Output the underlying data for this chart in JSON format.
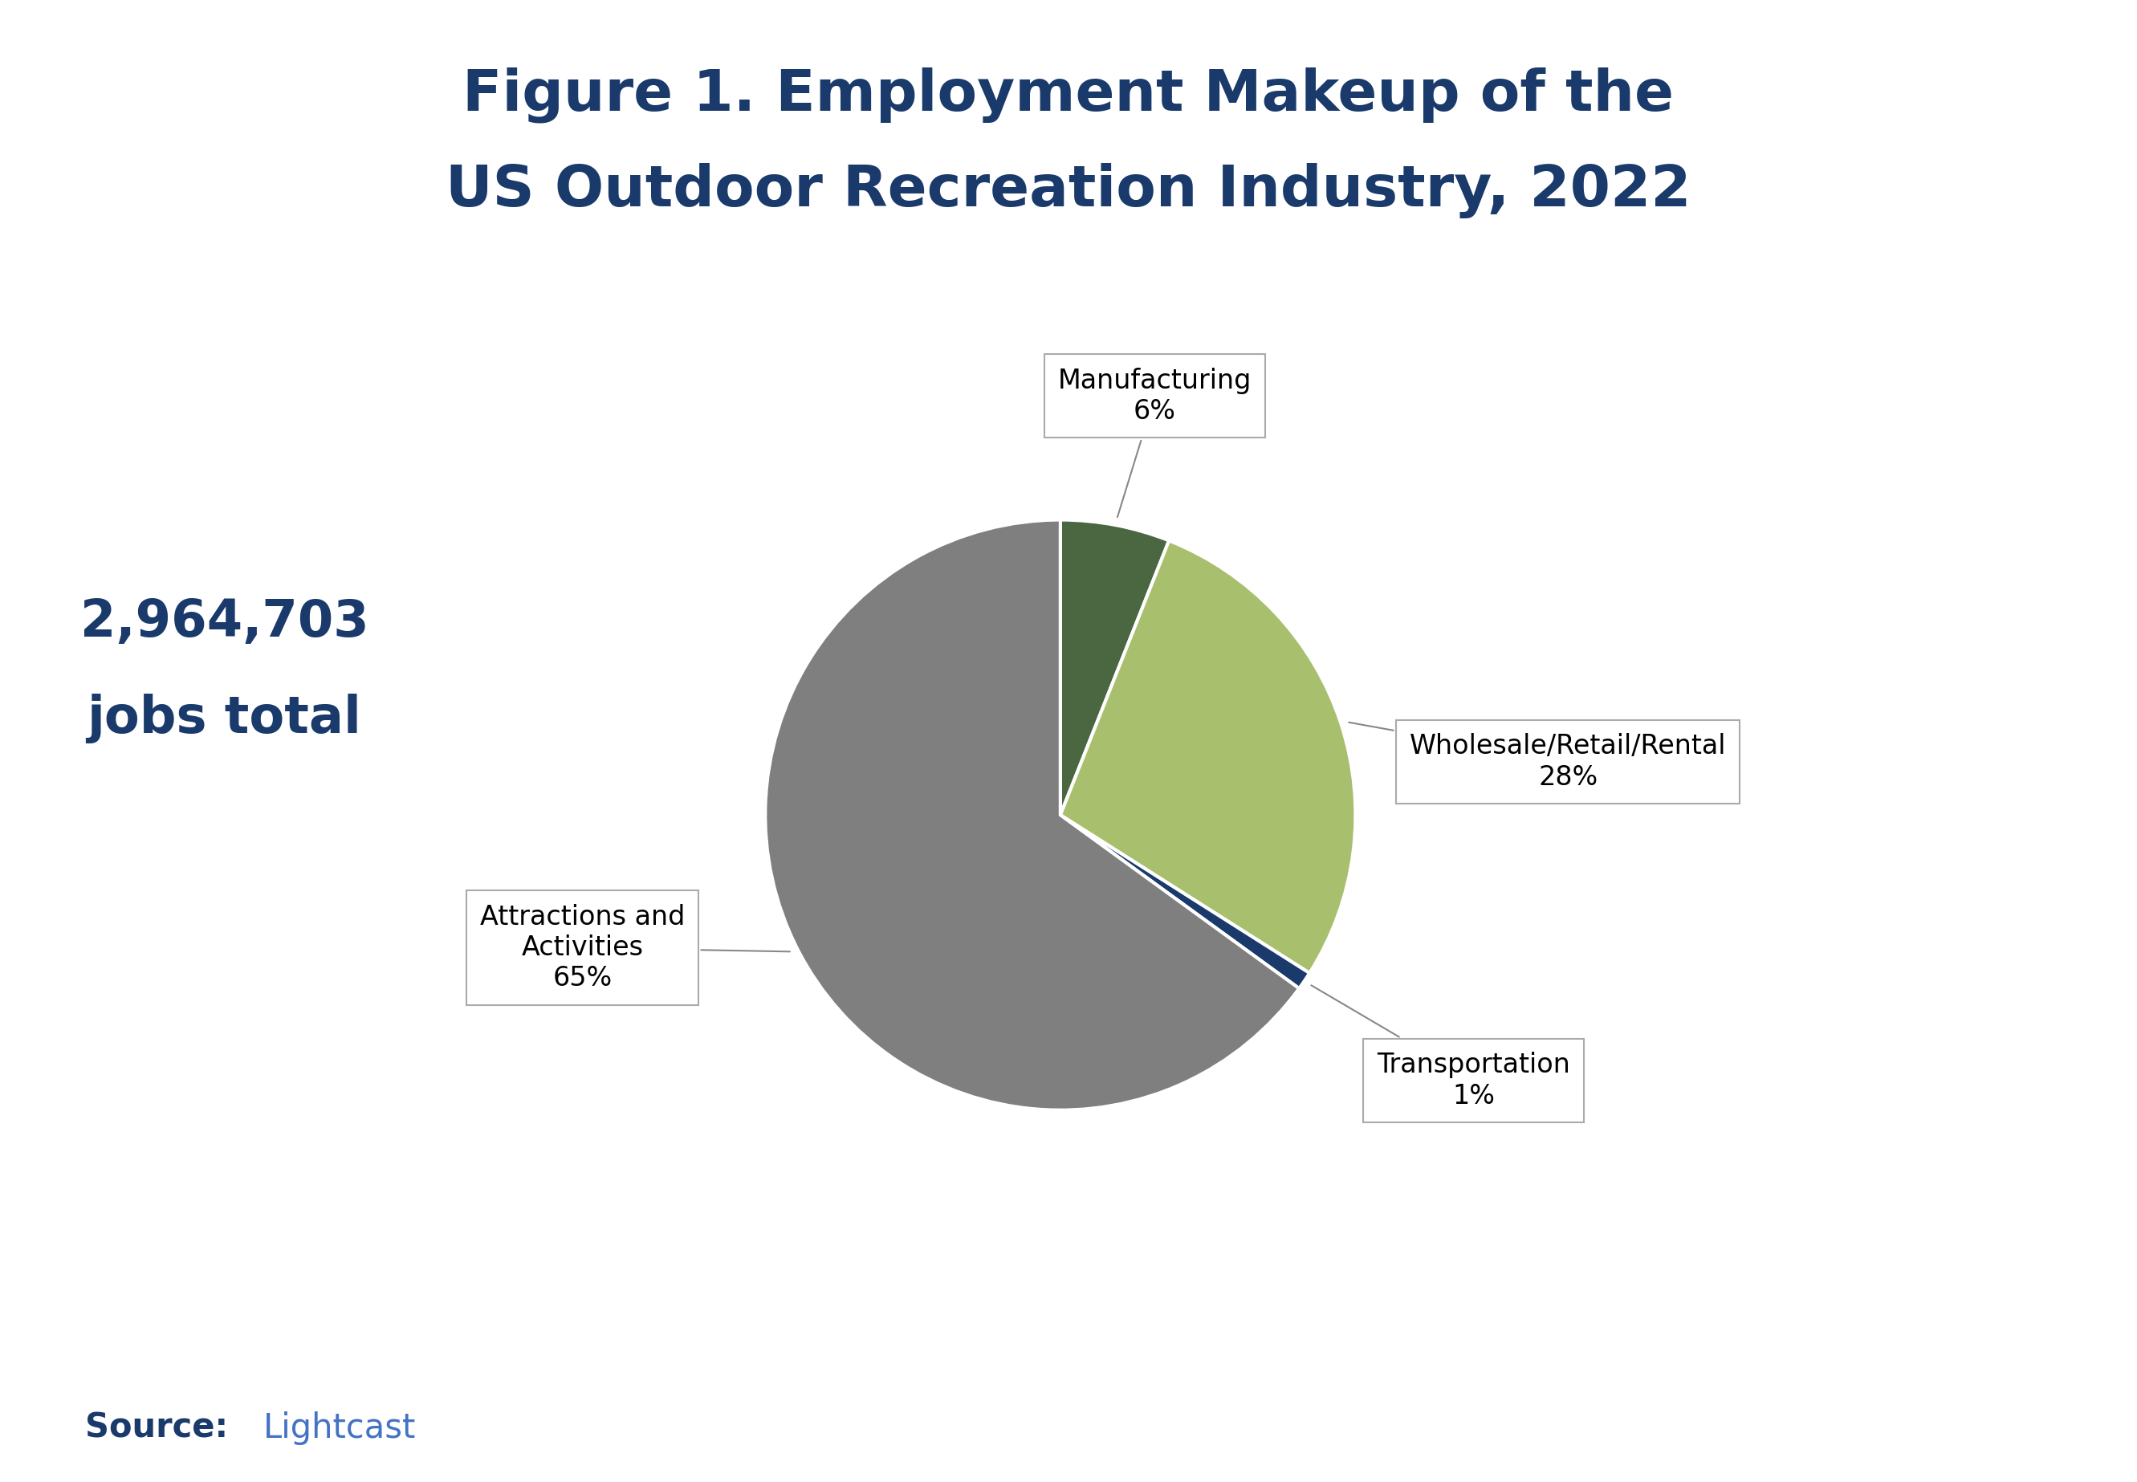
{
  "title_line1": "Figure 1. Employment Makeup of the",
  "title_line2": "US Outdoor Recreation Industry, 2022",
  "title_color": "#1a3a6b",
  "total_jobs": "2,964,703",
  "total_label": "jobs total",
  "total_color": "#1a3a6b",
  "pie_values": [
    6,
    28,
    1,
    65
  ],
  "pie_colors": [
    "#4a6741",
    "#a8c06e",
    "#1a3a6b",
    "#7f7f7f"
  ],
  "pie_labels": [
    "Manufacturing",
    "Wholesale/Retail/Rental",
    "Transportation",
    "Attractions and\nActivities"
  ],
  "pie_pcts": [
    "6%",
    "28%",
    "1%",
    "65%"
  ],
  "start_angle": 90,
  "source_bold": "Source:",
  "source_normal": "Lightcast",
  "source_color_bold": "#1a3a6b",
  "source_color_normal": "#4472c4",
  "background_color": "#ffffff",
  "wedge_edge_color": "#ffffff",
  "wedge_linewidth": 3.0,
  "ann_fontsize": 24,
  "title_fontsize": 52,
  "total_fontsize": 46,
  "source_fontsize": 30
}
